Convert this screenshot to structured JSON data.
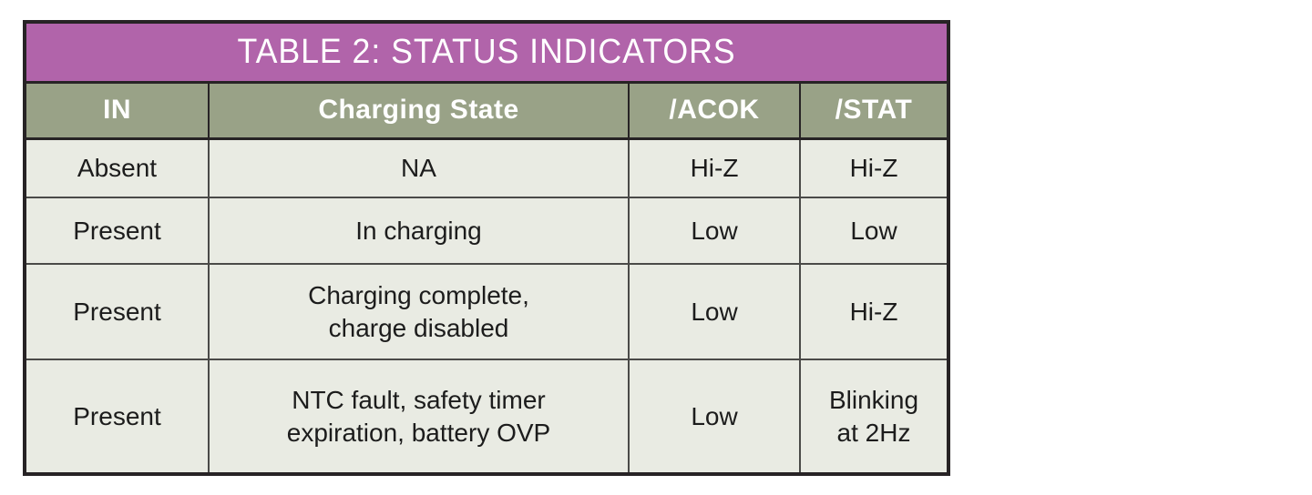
{
  "chart_data": {
    "type": "table",
    "title": "TABLE 2: STATUS INDICATORS",
    "columns": [
      "IN",
      "Charging State",
      "/ACOK",
      "/STAT"
    ],
    "rows": [
      [
        "Absent",
        "NA",
        "Hi-Z",
        "Hi-Z"
      ],
      [
        "Present",
        "In charging",
        "Low",
        "Low"
      ],
      [
        "Present",
        "Charging complete,\ncharge disabled",
        "Low",
        "Hi-Z"
      ],
      [
        "Present",
        "NTC fault, safety timer\nexpiration, battery OVP",
        "Low",
        "Blinking\nat 2Hz"
      ]
    ]
  },
  "colors": {
    "title_bg": "#b164aa",
    "header_bg": "#99a287",
    "cell_bg": "#e9ebe3",
    "border_dark": "#272325",
    "header_text": "#ffffff",
    "cell_text": "#1c1c1c",
    "canvas_bg": "#ffffff"
  }
}
